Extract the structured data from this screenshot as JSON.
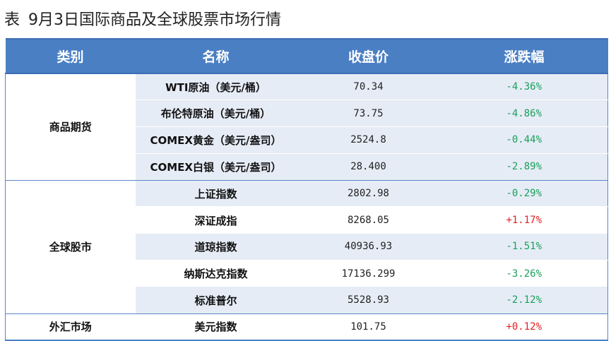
{
  "caption": {
    "lead": "表",
    "title": "9月3日国际商品及全球股票市场行情"
  },
  "table": {
    "headers": {
      "category": "类别",
      "name": "名称",
      "price": "收盘价",
      "change": "涨跌幅"
    },
    "groups": [
      {
        "category": "商品期货",
        "rows": [
          {
            "name": "WTI原油（美元/桶）",
            "price": "70.34",
            "change": "-4.36%",
            "direction": "down"
          },
          {
            "name": "布伦特原油（美元/桶）",
            "price": "73.75",
            "change": "-4.86%",
            "direction": "down"
          },
          {
            "name": "COMEX黄金（美元/盎司）",
            "price": "2524.8",
            "change": "-0.44%",
            "direction": "down"
          },
          {
            "name": "COMEX白银（美元/盎司）",
            "price": "28.400",
            "change": "-2.89%",
            "direction": "down"
          }
        ]
      },
      {
        "category": "全球股市",
        "rows": [
          {
            "name": "上证指数",
            "price": "2802.98",
            "change": "-0.29%",
            "direction": "down"
          },
          {
            "name": "深证成指",
            "price": "8268.05",
            "change": "+1.17%",
            "direction": "up"
          },
          {
            "name": "道琼指数",
            "price": "40936.93",
            "change": "-1.51%",
            "direction": "down"
          },
          {
            "name": "纳斯达克指数",
            "price": "17136.299",
            "change": "-3.26%",
            "direction": "down"
          },
          {
            "name": "标准普尔",
            "price": "5528.93",
            "change": "-2.12%",
            "direction": "down"
          }
        ]
      },
      {
        "category": "外汇市场",
        "rows": [
          {
            "name": "美元指数",
            "price": "101.75",
            "change": "+0.12%",
            "direction": "up"
          }
        ]
      }
    ]
  },
  "colors": {
    "header_bg": "#4a7fc4",
    "row_shade": "#e6ecf6",
    "down": "#18a05a",
    "up": "#e02020"
  }
}
